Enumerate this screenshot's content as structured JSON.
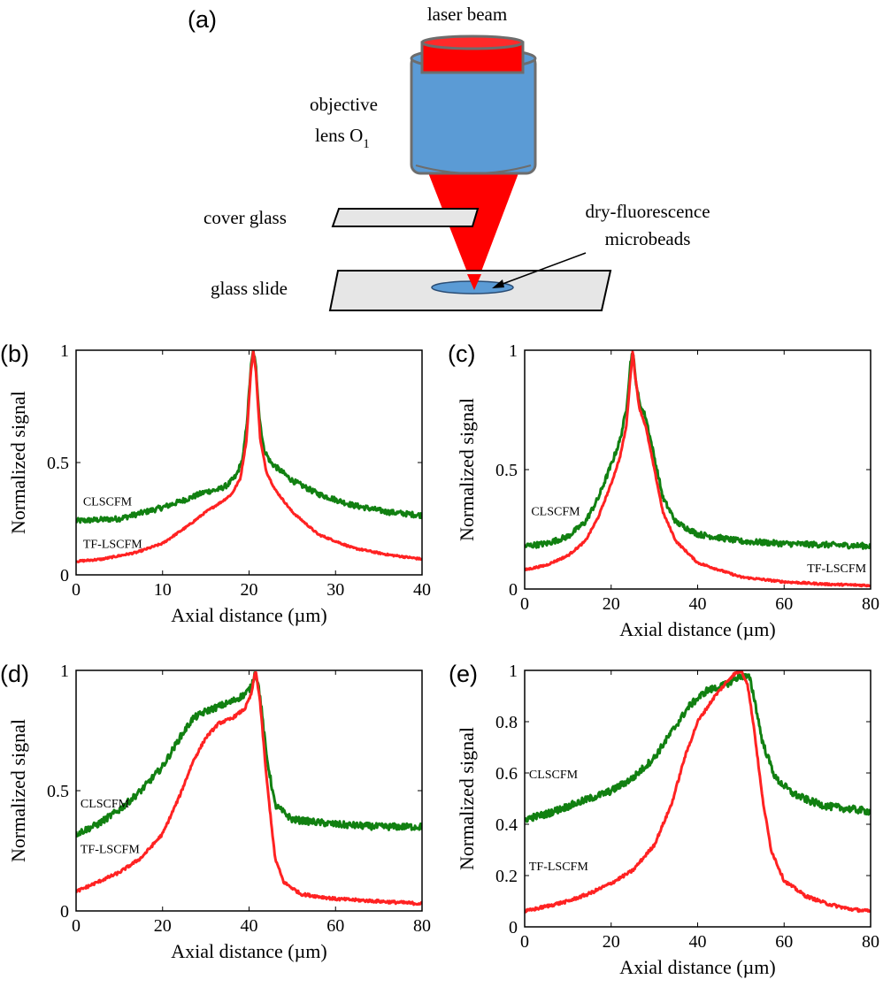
{
  "panel_a": {
    "label": "(a)",
    "laser_beam": "laser beam",
    "objective_line1": "objective",
    "objective_line2": "lens O",
    "objective_subscript": "1",
    "cover_glass": "cover glass",
    "beads_line1": "dry-fluorescence",
    "beads_line2": "microbeads",
    "glass_slide": "glass slide",
    "colors": {
      "beam": "#ff0000",
      "lens_body": "#5b9bd5",
      "lens_outline": "#6d6d6d",
      "glass": "#e6e6e6",
      "beads": "#5b9bd5"
    }
  },
  "chart_data": [
    {
      "panel": "(b)",
      "type": "line",
      "xlabel": "Axial distance (µm)",
      "ylabel": "Normalized signal",
      "xlim": [
        0,
        40
      ],
      "ylim": [
        0,
        1
      ],
      "xticks": [
        0,
        10,
        20,
        30,
        40
      ],
      "yticks": [
        0,
        0.5,
        1
      ],
      "ytick_labels": [
        "0",
        "0.5",
        "1"
      ],
      "series": [
        {
          "name": "CLSCFM",
          "color": "#118011",
          "noise": 0.012,
          "points": [
            [
              0,
              0.24
            ],
            [
              5,
              0.25
            ],
            [
              10,
              0.3
            ],
            [
              13,
              0.34
            ],
            [
              15,
              0.37
            ],
            [
              16.5,
              0.38
            ],
            [
              17.5,
              0.4
            ],
            [
              18.5,
              0.44
            ],
            [
              19.3,
              0.52
            ],
            [
              19.8,
              0.7
            ],
            [
              20.2,
              0.92
            ],
            [
              20.5,
              1.0
            ],
            [
              20.8,
              0.92
            ],
            [
              21.2,
              0.7
            ],
            [
              21.7,
              0.56
            ],
            [
              22.5,
              0.5
            ],
            [
              25,
              0.42
            ],
            [
              28,
              0.36
            ],
            [
              32,
              0.31
            ],
            [
              36,
              0.28
            ],
            [
              40,
              0.265
            ]
          ]
        },
        {
          "name": "TF-LSCFM",
          "color": "#ff2222",
          "noise": 0.004,
          "points": [
            [
              0,
              0.06
            ],
            [
              3,
              0.07
            ],
            [
              7,
              0.1
            ],
            [
              10,
              0.14
            ],
            [
              13,
              0.22
            ],
            [
              15,
              0.28
            ],
            [
              17,
              0.33
            ],
            [
              18,
              0.36
            ],
            [
              19,
              0.43
            ],
            [
              19.7,
              0.6
            ],
            [
              20.2,
              0.9
            ],
            [
              20.5,
              1.0
            ],
            [
              20.8,
              0.9
            ],
            [
              21.3,
              0.6
            ],
            [
              22,
              0.46
            ],
            [
              23,
              0.38
            ],
            [
              25,
              0.28
            ],
            [
              28,
              0.18
            ],
            [
              32,
              0.12
            ],
            [
              36,
              0.09
            ],
            [
              40,
              0.07
            ]
          ]
        }
      ],
      "annotations": [
        {
          "text": "CLSCFM",
          "x": 0.8,
          "y": 0.31,
          "anchor": "start"
        },
        {
          "text": "TF-LSCFM",
          "x": 0.8,
          "y": 0.12,
          "anchor": "start"
        }
      ]
    },
    {
      "panel": "(c)",
      "type": "line",
      "xlabel": "Axial distance (µm)",
      "ylabel": "Normalized signal",
      "xlim": [
        0,
        80
      ],
      "ylim": [
        0,
        1
      ],
      "xticks": [
        0,
        20,
        40,
        60,
        80
      ],
      "yticks": [
        0,
        0.5,
        1
      ],
      "ytick_labels": [
        "0",
        "0.5",
        "1"
      ],
      "series": [
        {
          "name": "CLSCFM",
          "color": "#118011",
          "noise": 0.012,
          "points": [
            [
              0,
              0.18
            ],
            [
              5,
              0.19
            ],
            [
              10,
              0.22
            ],
            [
              14,
              0.28
            ],
            [
              17,
              0.38
            ],
            [
              20,
              0.52
            ],
            [
              22,
              0.62
            ],
            [
              23.5,
              0.75
            ],
            [
              24.5,
              0.95
            ],
            [
              25,
              1.0
            ],
            [
              25.5,
              0.9
            ],
            [
              26.5,
              0.78
            ],
            [
              28,
              0.72
            ],
            [
              30,
              0.55
            ],
            [
              32,
              0.38
            ],
            [
              35,
              0.28
            ],
            [
              40,
              0.23
            ],
            [
              50,
              0.2
            ],
            [
              60,
              0.19
            ],
            [
              70,
              0.185
            ],
            [
              80,
              0.18
            ]
          ]
        },
        {
          "name": "TF-LSCFM",
          "color": "#ff2222",
          "noise": 0.004,
          "points": [
            [
              0,
              0.08
            ],
            [
              5,
              0.1
            ],
            [
              10,
              0.14
            ],
            [
              14,
              0.2
            ],
            [
              17,
              0.3
            ],
            [
              20,
              0.44
            ],
            [
              22,
              0.55
            ],
            [
              23.5,
              0.68
            ],
            [
              24.5,
              0.9
            ],
            [
              25,
              1.0
            ],
            [
              25.5,
              0.9
            ],
            [
              26.5,
              0.76
            ],
            [
              28,
              0.68
            ],
            [
              30,
              0.5
            ],
            [
              32,
              0.32
            ],
            [
              35,
              0.2
            ],
            [
              40,
              0.11
            ],
            [
              50,
              0.05
            ],
            [
              60,
              0.03
            ],
            [
              70,
              0.02
            ],
            [
              80,
              0.015
            ]
          ]
        }
      ],
      "annotations": [
        {
          "text": "CLSCFM",
          "x": 1.5,
          "y": 0.31,
          "anchor": "start"
        },
        {
          "text": "TF-LSCFM",
          "x": 79,
          "y": 0.07,
          "anchor": "end"
        }
      ]
    },
    {
      "panel": "(d)",
      "type": "line",
      "xlabel": "Axial distance (µm)",
      "ylabel": "Normalized signal",
      "xlim": [
        0,
        80
      ],
      "ylim": [
        0,
        1
      ],
      "xticks": [
        0,
        20,
        40,
        60,
        80
      ],
      "yticks": [
        0,
        0.5,
        1
      ],
      "ytick_labels": [
        "0",
        "0.5",
        "1"
      ],
      "series": [
        {
          "name": "CLSCFM",
          "color": "#118011",
          "noise": 0.014,
          "points": [
            [
              0,
              0.32
            ],
            [
              5,
              0.36
            ],
            [
              10,
              0.42
            ],
            [
              15,
              0.5
            ],
            [
              20,
              0.6
            ],
            [
              24,
              0.72
            ],
            [
              27,
              0.8
            ],
            [
              30,
              0.83
            ],
            [
              33,
              0.85
            ],
            [
              36,
              0.87
            ],
            [
              39,
              0.9
            ],
            [
              40.5,
              0.93
            ],
            [
              41.5,
              1.0
            ],
            [
              42.5,
              0.9
            ],
            [
              44,
              0.65
            ],
            [
              46,
              0.44
            ],
            [
              50,
              0.38
            ],
            [
              60,
              0.36
            ],
            [
              70,
              0.35
            ],
            [
              80,
              0.35
            ]
          ]
        },
        {
          "name": "TF-LSCFM",
          "color": "#ff2222",
          "noise": 0.006,
          "points": [
            [
              0,
              0.08
            ],
            [
              5,
              0.12
            ],
            [
              10,
              0.16
            ],
            [
              15,
              0.22
            ],
            [
              20,
              0.32
            ],
            [
              24,
              0.48
            ],
            [
              27,
              0.62
            ],
            [
              30,
              0.72
            ],
            [
              33,
              0.78
            ],
            [
              36,
              0.8
            ],
            [
              39,
              0.84
            ],
            [
              40.5,
              0.9
            ],
            [
              41.5,
              1.0
            ],
            [
              42.5,
              0.88
            ],
            [
              44,
              0.56
            ],
            [
              46,
              0.22
            ],
            [
              48,
              0.12
            ],
            [
              52,
              0.07
            ],
            [
              60,
              0.05
            ],
            [
              70,
              0.04
            ],
            [
              80,
              0.03
            ]
          ]
        }
      ],
      "annotations": [
        {
          "text": "CLSCFM",
          "x": 1,
          "y": 0.43,
          "anchor": "start"
        },
        {
          "text": "TF-LSCFM",
          "x": 1,
          "y": 0.24,
          "anchor": "start"
        }
      ]
    },
    {
      "panel": "(e)",
      "type": "line",
      "xlabel": "Axial distance (µm)",
      "ylabel": "Normalized signal",
      "xlim": [
        0,
        80
      ],
      "ylim": [
        0,
        1
      ],
      "xticks": [
        0,
        20,
        40,
        60,
        80
      ],
      "yticks": [
        0,
        0.2,
        0.4,
        0.6,
        0.8,
        1
      ],
      "ytick_labels": [
        "0",
        "0.2",
        "0.4",
        "0.6",
        "0.8",
        "1"
      ],
      "series": [
        {
          "name": "CLSCFM",
          "color": "#118011",
          "noise": 0.014,
          "points": [
            [
              0,
              0.42
            ],
            [
              5,
              0.44
            ],
            [
              10,
              0.47
            ],
            [
              15,
              0.5
            ],
            [
              20,
              0.53
            ],
            [
              25,
              0.58
            ],
            [
              30,
              0.66
            ],
            [
              34,
              0.76
            ],
            [
              38,
              0.86
            ],
            [
              42,
              0.92
            ],
            [
              46,
              0.94
            ],
            [
              50,
              0.98
            ],
            [
              52,
              0.97
            ],
            [
              53,
              0.9
            ],
            [
              55,
              0.72
            ],
            [
              58,
              0.58
            ],
            [
              62,
              0.52
            ],
            [
              66,
              0.49
            ],
            [
              70,
              0.47
            ],
            [
              75,
              0.46
            ],
            [
              80,
              0.45
            ]
          ]
        },
        {
          "name": "TF-LSCFM",
          "color": "#ff2222",
          "noise": 0.006,
          "points": [
            [
              0,
              0.06
            ],
            [
              5,
              0.08
            ],
            [
              10,
              0.1
            ],
            [
              15,
              0.13
            ],
            [
              20,
              0.17
            ],
            [
              25,
              0.22
            ],
            [
              30,
              0.32
            ],
            [
              34,
              0.48
            ],
            [
              37,
              0.66
            ],
            [
              40,
              0.8
            ],
            [
              44,
              0.9
            ],
            [
              48,
              0.98
            ],
            [
              50,
              1.0
            ],
            [
              51.5,
              0.95
            ],
            [
              53,
              0.78
            ],
            [
              55,
              0.5
            ],
            [
              57,
              0.3
            ],
            [
              60,
              0.18
            ],
            [
              65,
              0.12
            ],
            [
              70,
              0.09
            ],
            [
              75,
              0.07
            ],
            [
              80,
              0.06
            ]
          ]
        }
      ],
      "annotations": [
        {
          "text": "CLSCFM",
          "x": 1,
          "y": 0.58,
          "anchor": "start"
        },
        {
          "text": "TF-LSCFM",
          "x": 1,
          "y": 0.22,
          "anchor": "start"
        }
      ]
    }
  ]
}
